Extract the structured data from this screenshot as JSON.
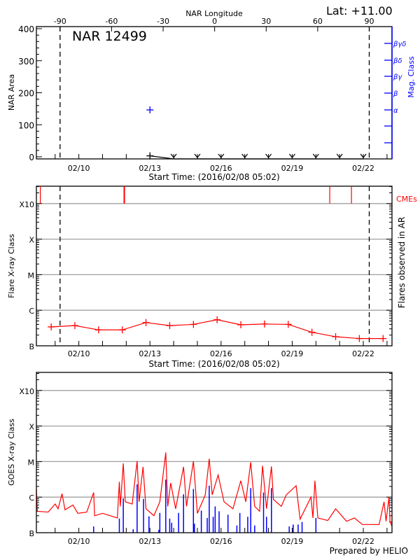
{
  "header": {
    "lat": "Lat: +11.00"
  },
  "colors": {
    "axis": "#000000",
    "grid": "#a0a0a0",
    "flare": "#ff0000",
    "mag_class": "#0000ff",
    "goes_long": "#ff0000",
    "goes_short": "#0000ff"
  },
  "chart_data": [
    {
      "type": "scatter",
      "title": "NAR 12499",
      "xlabel": "Start Time: (2016/02/08 05:02)",
      "xlim": [
        "02/08 05:02",
        "02/23 05:02"
      ],
      "xticks": [
        "02/10 00:00",
        "02/13 00:00",
        "02/16 00:00",
        "02/19 00:00",
        "02/22 00:00"
      ],
      "xticklabels": [
        "02/10",
        "02/13",
        "02/16",
        "02/19",
        "02/22"
      ],
      "top_xlabel": "NAR Longitude",
      "top_xticks": [
        -90,
        -60,
        -30,
        0,
        30,
        60,
        90
      ],
      "top_xticklabels": [
        "-90",
        "-60",
        "-30",
        "0",
        "30",
        "60",
        "90"
      ],
      "ylabel": "NAR Area",
      "ylim": [
        0,
        400
      ],
      "yticks": [
        0,
        100,
        200,
        300,
        400
      ],
      "yticklabels": [
        "0",
        "100",
        "200",
        "300",
        "400"
      ],
      "y2label": "Mag. Class",
      "y2ticklabels": [
        "α",
        "β",
        "βγ",
        "βδ",
        "βγδ"
      ],
      "limb_lines": [
        "02/09 05:00",
        "02/22 06:00"
      ],
      "area_series": [
        {
          "time": "02/13 00:00",
          "area": 3
        },
        {
          "time": "02/14 00:00",
          "area": 0
        },
        {
          "time": "02/15 00:00",
          "area": 0
        },
        {
          "time": "02/16 00:00",
          "area": 0
        },
        {
          "time": "02/17 00:00",
          "area": 0
        },
        {
          "time": "02/18 00:00",
          "area": 0
        },
        {
          "time": "02/19 00:00",
          "area": 0
        },
        {
          "time": "02/20 00:00",
          "area": 0
        },
        {
          "time": "02/21 00:00",
          "area": 0
        },
        {
          "time": "02/22 00:00",
          "area": 0
        }
      ],
      "mag_class_points": [
        {
          "time": "02/13 00:00",
          "class": "α"
        }
      ]
    },
    {
      "type": "line",
      "xlabel": "Start Time: (2016/02/08 05:02)",
      "xlim": [
        "02/08 05:02",
        "02/23 05:02"
      ],
      "xticks": [
        "02/10 00:00",
        "02/13 00:00",
        "02/16 00:00",
        "02/19 00:00",
        "02/22 00:00"
      ],
      "xticklabels": [
        "02/10",
        "02/13",
        "02/16",
        "02/19",
        "02/22"
      ],
      "ylabel": "Flare X-ray Class",
      "y2label": "Flares observed in AR",
      "yscale": "log",
      "ylim": [
        1e-07,
        0.0031
      ],
      "yticks": [
        1e-07,
        1e-06,
        1e-05,
        0.0001,
        0.001
      ],
      "yticklabels": [
        "B",
        "C",
        "M",
        "X",
        "X10"
      ],
      "grid": true,
      "limb_lines": [
        "02/09 05:00",
        "02/22 06:00"
      ],
      "cme_label": "CMEs",
      "cmes": [
        "02/08 09:00",
        "02/11 22:00",
        "02/20 14:00",
        "02/21 12:00"
      ],
      "flare_series": [
        {
          "time": "02/08 20:00",
          "value": 3.4e-07
        },
        {
          "time": "02/09 20:00",
          "value": 3.7e-07
        },
        {
          "time": "02/10 20:00",
          "value": 2.8e-07
        },
        {
          "time": "02/11 20:00",
          "value": 2.8e-07
        },
        {
          "time": "02/12 20:00",
          "value": 4.5e-07
        },
        {
          "time": "02/13 20:00",
          "value": 3.7e-07
        },
        {
          "time": "02/14 20:00",
          "value": 4e-07
        },
        {
          "time": "02/15 20:00",
          "value": 5.4e-07
        },
        {
          "time": "02/16 20:00",
          "value": 3.9e-07
        },
        {
          "time": "02/17 20:00",
          "value": 4.1e-07
        },
        {
          "time": "02/18 20:00",
          "value": 4e-07
        },
        {
          "time": "02/19 20:00",
          "value": 2.4e-07
        },
        {
          "time": "02/20 20:00",
          "value": 1.8e-07
        },
        {
          "time": "02/21 20:00",
          "value": 1.6e-07
        },
        {
          "time": "02/22 20:00",
          "value": 1.6e-07
        }
      ]
    },
    {
      "type": "line",
      "xlim": [
        "02/08 05:02",
        "02/23 05:02"
      ],
      "xticks": [
        "02/10 00:00",
        "02/13 00:00",
        "02/16 00:00",
        "02/19 00:00",
        "02/22 00:00"
      ],
      "xticklabels": [
        "02/10",
        "02/13",
        "02/16",
        "02/19",
        "02/22"
      ],
      "ylabel": "GOES X-ray Class",
      "yscale": "log",
      "ylim": [
        1e-07,
        0.0031
      ],
      "yticks": [
        1e-07,
        1e-06,
        1e-05,
        0.0001,
        0.001
      ],
      "yticklabels": [
        "B",
        "C",
        "M",
        "X",
        "X10"
      ],
      "grid": true,
      "footer": "Prepared by HELIO",
      "long_channel": [
        [
          "02/08 05:00",
          1.7e-06
        ],
        [
          "02/08 06:00",
          4e-07
        ],
        [
          "02/08 17:00",
          3.8e-07
        ],
        [
          "02/09 00:00",
          6.4e-07
        ],
        [
          "02/09 03:00",
          4.7e-07
        ],
        [
          "02/09 07:00",
          1.25e-06
        ],
        [
          "02/09 10:00",
          4.4e-07
        ],
        [
          "02/09 18:00",
          6e-07
        ],
        [
          "02/09 23:00",
          3.5e-07
        ],
        [
          "02/10 08:00",
          3.8e-07
        ],
        [
          "02/10 15:00",
          1.35e-06
        ],
        [
          "02/10 16:00",
          3e-07
        ],
        [
          "02/11 00:00",
          3.5e-07
        ],
        [
          "02/11 08:00",
          3e-07
        ],
        [
          "02/11 15:00",
          2.6e-07
        ],
        [
          "02/11 17:00",
          2.7e-06
        ],
        [
          "02/11 18:00",
          5.5e-07
        ],
        [
          "02/11 21:00",
          8.9e-06
        ],
        [
          "02/11 23:00",
          7.4e-07
        ],
        [
          "02/12 06:00",
          6.4e-07
        ],
        [
          "02/12 11:00",
          1.03e-05
        ],
        [
          "02/12 13:00",
          7.4e-07
        ],
        [
          "02/12 17:00",
          7.1e-06
        ],
        [
          "02/12 20:00",
          4.7e-07
        ],
        [
          "02/13 04:00",
          3e-07
        ],
        [
          "02/13 10:00",
          7.4e-07
        ],
        [
          "02/13 16:00",
          1.8e-05
        ],
        [
          "02/13 18:00",
          5.5e-07
        ],
        [
          "02/13 21:00",
          2.5e-06
        ],
        [
          "02/14 02:00",
          4.7e-07
        ],
        [
          "02/14 10:00",
          7.1e-06
        ],
        [
          "02/14 13:00",
          5.5e-07
        ],
        [
          "02/14 20:00",
          1.03e-05
        ],
        [
          "02/15 00:00",
          3.5e-07
        ],
        [
          "02/15 08:00",
          1.16e-06
        ],
        [
          "02/15 12:00",
          1.2e-05
        ],
        [
          "02/15 15:00",
          1.16e-06
        ],
        [
          "02/15 21:00",
          4.2e-06
        ],
        [
          "02/16 03:00",
          7.4e-07
        ],
        [
          "02/16 12:00",
          4.7e-07
        ],
        [
          "02/16 20:00",
          2.9e-06
        ],
        [
          "02/17 01:00",
          7.4e-07
        ],
        [
          "02/17 06:00",
          9.6e-06
        ],
        [
          "02/17 10:00",
          5.5e-07
        ],
        [
          "02/17 15:00",
          4e-07
        ],
        [
          "02/17 18:00",
          7.6e-06
        ],
        [
          "02/17 22:00",
          4.7e-07
        ],
        [
          "02/18 03:00",
          7.3e-06
        ],
        [
          "02/18 05:00",
          8.6e-07
        ],
        [
          "02/18 13:00",
          5.5e-07
        ],
        [
          "02/18 18:00",
          1.16e-06
        ],
        [
          "02/19 04:00",
          2.1e-06
        ],
        [
          "02/19 08:00",
          2.4e-07
        ],
        [
          "02/19 19:00",
          1e-06
        ],
        [
          "02/19 21:00",
          2.6e-07
        ],
        [
          "02/19 23:00",
          2.9e-06
        ],
        [
          "02/20 02:00",
          2.6e-07
        ],
        [
          "02/20 12:00",
          2.2e-07
        ],
        [
          "02/20 20:00",
          4.7e-07
        ],
        [
          "02/21 07:00",
          2.1e-07
        ],
        [
          "02/21 15:00",
          2.6e-07
        ],
        [
          "02/21 23:00",
          1.7e-07
        ],
        [
          "02/22 16:00",
          1.7e-07
        ],
        [
          "02/22 21:00",
          7.4e-07
        ],
        [
          "02/22 23:00",
          2.1e-07
        ],
        [
          "02/23 02:00",
          1e-06
        ],
        [
          "02/23 03:00",
          2.1e-07
        ],
        [
          "02/23 05:00",
          1.5e-07
        ]
      ],
      "short_channel": [
        [
          "02/10 15:00",
          1.5e-07
        ],
        [
          "02/11 17:00",
          2.5e-07
        ],
        [
          "02/11 21:00",
          9.3e-07
        ],
        [
          "02/12 07:00",
          1.25e-07
        ],
        [
          "02/12 11:00",
          2.3e-06
        ],
        [
          "02/12 17:30",
          8.9e-07
        ],
        [
          "02/12 23:00",
          2.9e-07
        ],
        [
          "02/13 09:00",
          1.2e-07
        ],
        [
          "02/13 10:00",
          3.6e-07
        ],
        [
          "02/13 16:00",
          3.1e-06
        ],
        [
          "02/13 20:00",
          2.5e-07
        ],
        [
          "02/13 22:00",
          1.9e-07
        ],
        [
          "02/14 05:00",
          3.6e-07
        ],
        [
          "02/14 10:00",
          1.2e-06
        ],
        [
          "02/14 20:00",
          1.7e-06
        ],
        [
          "02/14 21:00",
          1.8e-07
        ],
        [
          "02/15 04:00",
          4.2e-07
        ],
        [
          "02/15 10:00",
          2.6e-07
        ],
        [
          "02/15 12:00",
          2.1e-06
        ],
        [
          "02/15 16:00",
          2.8e-07
        ],
        [
          "02/15 18:00",
          5.5e-07
        ],
        [
          "02/15 22:00",
          4e-07
        ],
        [
          "02/16 07:00",
          3.2e-07
        ],
        [
          "02/16 16:00",
          1.6e-07
        ],
        [
          "02/16 19:00",
          3.6e-07
        ],
        [
          "02/17 03:00",
          2.8e-07
        ],
        [
          "02/17 06:00",
          1.8e-06
        ],
        [
          "02/17 10:00",
          1.6e-07
        ],
        [
          "02/17 19:00",
          1.35e-06
        ],
        [
          "02/17 22:00",
          2.8e-07
        ],
        [
          "02/18 03:00",
          1.8e-06
        ],
        [
          "02/18 21:00",
          1.5e-07
        ],
        [
          "02/19 01:00",
          1.7e-07
        ],
        [
          "02/19 06:00",
          1.7e-07
        ],
        [
          "02/19 10:00",
          2e-07
        ],
        [
          "02/20 00:00",
          2.6e-07
        ]
      ]
    }
  ]
}
